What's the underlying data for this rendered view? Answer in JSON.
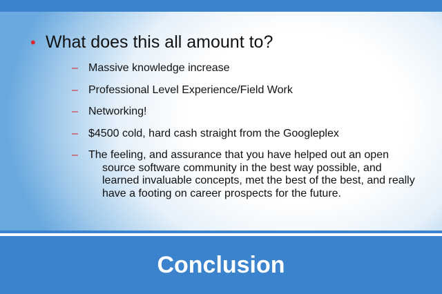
{
  "slide": {
    "title": "Conclusion",
    "main_bullet": "What does this all amount to?",
    "main_bullet_marker": "•",
    "sub_marker": "–",
    "sub_items": [
      "Massive knowledge increase",
      "Professional Level Experience/Field Work",
      "Networking!",
      "$4500 cold, hard cash straight from the Googleplex",
      "The feeling, and assurance that you have helped out an open source software community in the best way possible, and learned invaluable concepts, met the best of the best, and really have a footing on career prospects for the future."
    ]
  },
  "colors": {
    "accent_blue": "#3b83cc",
    "bullet_red": "#d8282d"
  }
}
